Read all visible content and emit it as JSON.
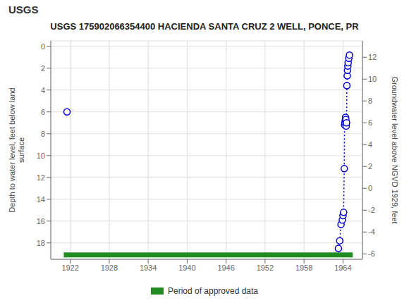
{
  "chart_data": {
    "type": "scatter",
    "title": "USGS 175902066354400 HACIENDA SANTA CRUZ 2 WELL, PONCE, PR",
    "annotations": [
      "USGS"
    ],
    "ylabel": "Depth to water level, feet below land\nsurface",
    "y2label": "Groundwater level above NGVD 1929, feet",
    "xlim": [
      1919.0,
      1967.0
    ],
    "xticks": [
      1922,
      1928,
      1934,
      1940,
      1946,
      1952,
      1958,
      1964
    ],
    "ylim": [
      19.5,
      -0.5
    ],
    "yticks": [
      0,
      2,
      4,
      6,
      8,
      10,
      12,
      14,
      16,
      18
    ],
    "y2lim": [
      -6.5,
      13.5
    ],
    "y2ticks": [
      -6,
      -4,
      -2,
      0,
      2,
      4,
      6,
      8,
      10,
      12
    ],
    "grid": true,
    "legend": "bottom",
    "series": [
      {
        "type": "scatter",
        "color": "#0000cc",
        "marker": "circle",
        "x": [
          1921.5
        ],
        "values": [
          6.0
        ]
      },
      {
        "type": "line",
        "color": "#0000cc",
        "line_style": "dotted",
        "marker": "circle",
        "x": [
          1963.3,
          1963.5,
          1963.7,
          1963.9,
          1964.0,
          1964.1,
          1964.2,
          1964.25,
          1964.3,
          1964.35,
          1964.4,
          1964.45,
          1964.5,
          1964.55,
          1964.6,
          1964.65,
          1964.7,
          1964.75,
          1964.8,
          1964.9,
          1965.0
        ],
        "values": [
          18.5,
          17.8,
          16.3,
          15.9,
          15.5,
          15.2,
          11.2,
          7.2,
          7.0,
          6.8,
          6.5,
          6.7,
          7.3,
          7.0,
          3.6,
          2.7,
          2.2,
          1.8,
          1.5,
          1.1,
          0.8
        ]
      },
      {
        "type": "bar",
        "orientation": "horizontal",
        "name": "Period of approved data",
        "color": "#228B22",
        "x": [
          1921.0,
          1965.5
        ],
        "y": [
          18.875,
          19.325
        ]
      }
    ]
  }
}
